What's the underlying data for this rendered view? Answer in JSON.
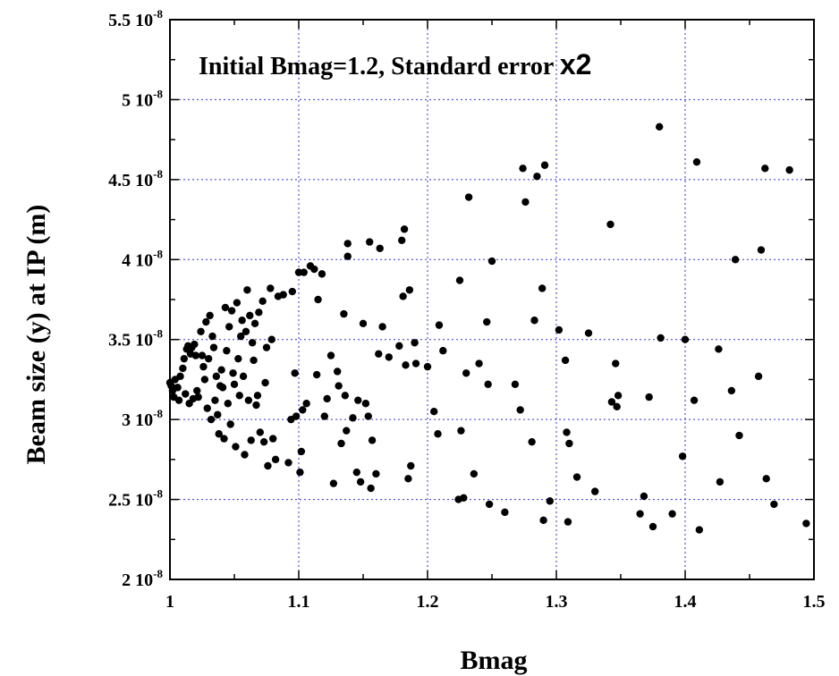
{
  "chart_data": {
    "type": "scatter",
    "xlabel": "Bmag",
    "ylabel": "Beam size (y) at IP (m)",
    "annotation": {
      "text": "Initial Bmag=1.2, Standard error ",
      "emphasis": "x2"
    },
    "xlim": [
      1.0,
      1.5
    ],
    "ylim": [
      2e-08,
      5.5e-08
    ],
    "grid": true,
    "legend": "none",
    "marker_color": "#000000",
    "grid_color": "#3333cc",
    "x_ticks": [
      {
        "value": 1.0,
        "label": "1"
      },
      {
        "value": 1.1,
        "label": "1.1"
      },
      {
        "value": 1.2,
        "label": "1.2"
      },
      {
        "value": 1.3,
        "label": "1.3"
      },
      {
        "value": 1.4,
        "label": "1.4"
      },
      {
        "value": 1.5,
        "label": "1.5"
      }
    ],
    "y_ticks": [
      {
        "value": 2e-08,
        "mantissa": "2",
        "exp": "-8"
      },
      {
        "value": 2.5e-08,
        "mantissa": "2.5",
        "exp": "-8"
      },
      {
        "value": 3e-08,
        "mantissa": "3",
        "exp": "-8"
      },
      {
        "value": 3.5e-08,
        "mantissa": "3.5",
        "exp": "-8"
      },
      {
        "value": 4e-08,
        "mantissa": "4",
        "exp": "-8"
      },
      {
        "value": 4.5e-08,
        "mantissa": "4.5",
        "exp": "-8"
      },
      {
        "value": 5e-08,
        "mantissa": "5",
        "exp": "-8"
      },
      {
        "value": 5.5e-08,
        "mantissa": "5.5",
        "exp": "-8"
      }
    ],
    "y_unit_scale": 1e-08,
    "points": [
      [
        1.0,
        3.23
      ],
      [
        1.001,
        3.21
      ],
      [
        1.002,
        3.18
      ],
      [
        1.003,
        3.14
      ],
      [
        1.004,
        3.25
      ],
      [
        1.006,
        3.2
      ],
      [
        1.007,
        3.12
      ],
      [
        1.008,
        3.27
      ],
      [
        1.01,
        3.32
      ],
      [
        1.011,
        3.38
      ],
      [
        1.012,
        3.16
      ],
      [
        1.013,
        3.44
      ],
      [
        1.014,
        3.46
      ],
      [
        1.015,
        3.1
      ],
      [
        1.016,
        3.41
      ],
      [
        1.017,
        3.45
      ],
      [
        1.018,
        3.13
      ],
      [
        1.019,
        3.47
      ],
      [
        1.02,
        3.4
      ],
      [
        1.021,
        3.18
      ],
      [
        1.022,
        3.14
      ],
      [
        1.024,
        3.55
      ],
      [
        1.025,
        3.4
      ],
      [
        1.026,
        3.33
      ],
      [
        1.027,
        3.25
      ],
      [
        1.028,
        3.61
      ],
      [
        1.029,
        3.07
      ],
      [
        1.03,
        3.38
      ],
      [
        1.031,
        3.65
      ],
      [
        1.032,
        3.0
      ],
      [
        1.033,
        3.52
      ],
      [
        1.034,
        3.45
      ],
      [
        1.035,
        3.12
      ],
      [
        1.036,
        3.27
      ],
      [
        1.037,
        3.03
      ],
      [
        1.038,
        2.91
      ],
      [
        1.039,
        3.21
      ],
      [
        1.04,
        3.31
      ],
      [
        1.041,
        3.2
      ],
      [
        1.042,
        2.88
      ],
      [
        1.043,
        3.7
      ],
      [
        1.044,
        3.43
      ],
      [
        1.045,
        3.1
      ],
      [
        1.046,
        3.58
      ],
      [
        1.047,
        2.97
      ],
      [
        1.048,
        3.68
      ],
      [
        1.049,
        3.29
      ],
      [
        1.05,
        3.22
      ],
      [
        1.051,
        2.83
      ],
      [
        1.052,
        3.73
      ],
      [
        1.053,
        3.38
      ],
      [
        1.054,
        3.15
      ],
      [
        1.055,
        3.52
      ],
      [
        1.056,
        3.62
      ],
      [
        1.057,
        3.27
      ],
      [
        1.058,
        2.78
      ],
      [
        1.059,
        3.55
      ],
      [
        1.06,
        3.81
      ],
      [
        1.061,
        3.12
      ],
      [
        1.062,
        3.65
      ],
      [
        1.063,
        2.87
      ],
      [
        1.064,
        3.48
      ],
      [
        1.065,
        3.37
      ],
      [
        1.066,
        3.6
      ],
      [
        1.067,
        3.09
      ],
      [
        1.068,
        3.15
      ],
      [
        1.069,
        3.67
      ],
      [
        1.07,
        2.92
      ],
      [
        1.072,
        3.74
      ],
      [
        1.073,
        2.86
      ],
      [
        1.074,
        3.23
      ],
      [
        1.075,
        3.45
      ],
      [
        1.076,
        2.71
      ],
      [
        1.078,
        3.82
      ],
      [
        1.079,
        3.5
      ],
      [
        1.08,
        2.88
      ],
      [
        1.082,
        2.75
      ],
      [
        1.084,
        3.77
      ],
      [
        1.088,
        3.78
      ],
      [
        1.092,
        2.73
      ],
      [
        1.094,
        3.0
      ],
      [
        1.095,
        3.8
      ],
      [
        1.097,
        3.29
      ],
      [
        1.098,
        3.02
      ],
      [
        1.1,
        3.92
      ],
      [
        1.101,
        2.67
      ],
      [
        1.102,
        2.8
      ],
      [
        1.103,
        3.06
      ],
      [
        1.104,
        3.92
      ],
      [
        1.106,
        3.1
      ],
      [
        1.109,
        3.96
      ],
      [
        1.112,
        3.94
      ],
      [
        1.114,
        3.28
      ],
      [
        1.115,
        3.75
      ],
      [
        1.118,
        3.91
      ],
      [
        1.12,
        3.02
      ],
      [
        1.122,
        3.13
      ],
      [
        1.125,
        3.4
      ],
      [
        1.127,
        2.6
      ],
      [
        1.13,
        3.3
      ],
      [
        1.131,
        3.21
      ],
      [
        1.133,
        2.85
      ],
      [
        1.135,
        3.66
      ],
      [
        1.136,
        3.15
      ],
      [
        1.137,
        2.93
      ],
      [
        1.138,
        4.02
      ],
      [
        1.138,
        4.1
      ],
      [
        1.142,
        3.01
      ],
      [
        1.145,
        2.67
      ],
      [
        1.146,
        3.12
      ],
      [
        1.148,
        2.61
      ],
      [
        1.15,
        3.6
      ],
      [
        1.152,
        3.1
      ],
      [
        1.154,
        3.02
      ],
      [
        1.155,
        4.11
      ],
      [
        1.156,
        2.57
      ],
      [
        1.157,
        2.87
      ],
      [
        1.16,
        2.66
      ],
      [
        1.162,
        3.41
      ],
      [
        1.163,
        4.07
      ],
      [
        1.165,
        3.58
      ],
      [
        1.17,
        3.39
      ],
      [
        1.178,
        3.46
      ],
      [
        1.18,
        4.12
      ],
      [
        1.181,
        3.77
      ],
      [
        1.182,
        4.19
      ],
      [
        1.183,
        3.34
      ],
      [
        1.185,
        2.63
      ],
      [
        1.186,
        3.81
      ],
      [
        1.187,
        2.71
      ],
      [
        1.19,
        3.48
      ],
      [
        1.191,
        3.35
      ],
      [
        1.2,
        3.33
      ],
      [
        1.205,
        3.05
      ],
      [
        1.208,
        2.91
      ],
      [
        1.209,
        3.59
      ],
      [
        1.212,
        3.43
      ],
      [
        1.224,
        2.5
      ],
      [
        1.225,
        3.87
      ],
      [
        1.226,
        2.93
      ],
      [
        1.228,
        2.51
      ],
      [
        1.23,
        3.29
      ],
      [
        1.232,
        4.39
      ],
      [
        1.236,
        2.66
      ],
      [
        1.24,
        3.35
      ],
      [
        1.246,
        3.61
      ],
      [
        1.247,
        3.22
      ],
      [
        1.248,
        2.47
      ],
      [
        1.25,
        3.99
      ],
      [
        1.26,
        2.42
      ],
      [
        1.268,
        3.22
      ],
      [
        1.272,
        3.06
      ],
      [
        1.274,
        4.57
      ],
      [
        1.276,
        4.36
      ],
      [
        1.281,
        2.86
      ],
      [
        1.283,
        3.62
      ],
      [
        1.285,
        4.52
      ],
      [
        1.289,
        3.82
      ],
      [
        1.29,
        2.37
      ],
      [
        1.291,
        4.59
      ],
      [
        1.295,
        2.49
      ],
      [
        1.302,
        3.56
      ],
      [
        1.307,
        3.37
      ],
      [
        1.308,
        2.92
      ],
      [
        1.31,
        2.85
      ],
      [
        1.309,
        2.36
      ],
      [
        1.316,
        2.64
      ],
      [
        1.325,
        3.54
      ],
      [
        1.33,
        2.55
      ],
      [
        1.342,
        4.22
      ],
      [
        1.343,
        3.11
      ],
      [
        1.346,
        3.35
      ],
      [
        1.347,
        3.08
      ],
      [
        1.348,
        3.15
      ],
      [
        1.365,
        2.41
      ],
      [
        1.368,
        2.52
      ],
      [
        1.372,
        3.14
      ],
      [
        1.375,
        2.33
      ],
      [
        1.38,
        4.83
      ],
      [
        1.381,
        3.51
      ],
      [
        1.39,
        2.41
      ],
      [
        1.398,
        2.77
      ],
      [
        1.4,
        3.5
      ],
      [
        1.407,
        3.12
      ],
      [
        1.409,
        4.61
      ],
      [
        1.411,
        2.31
      ],
      [
        1.426,
        3.44
      ],
      [
        1.427,
        2.61
      ],
      [
        1.436,
        3.18
      ],
      [
        1.439,
        4.0
      ],
      [
        1.442,
        2.9
      ],
      [
        1.457,
        3.27
      ],
      [
        1.459,
        4.06
      ],
      [
        1.462,
        4.57
      ],
      [
        1.463,
        2.63
      ],
      [
        1.469,
        2.47
      ],
      [
        1.481,
        4.56
      ],
      [
        1.494,
        2.35
      ]
    ]
  }
}
